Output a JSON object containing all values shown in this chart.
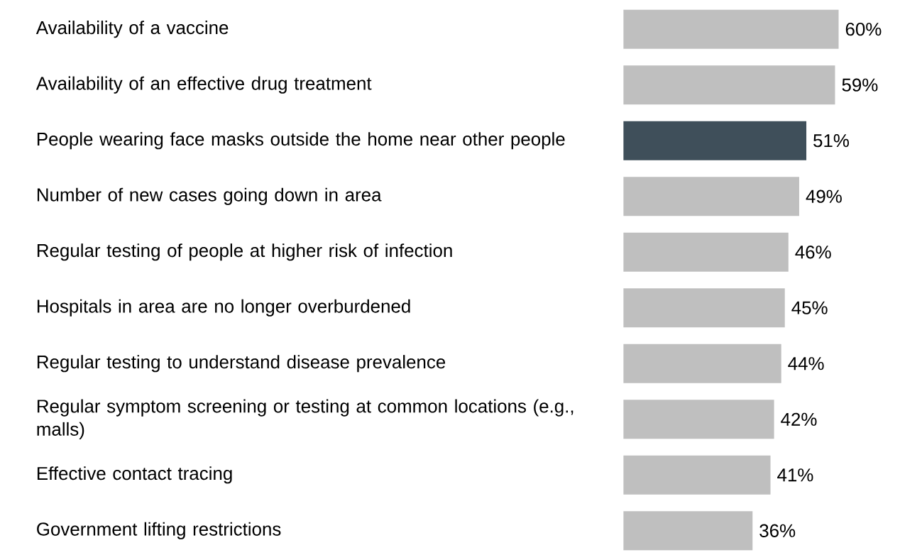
{
  "chart_data": {
    "type": "bar",
    "orientation": "horizontal",
    "categories": [
      "Availability of a vaccine",
      "Availability of an effective drug treatment",
      "People wearing face masks outside the home near other people",
      "Number of new cases going down in area",
      "Regular testing of people at higher risk of infection",
      "Hospitals in area are no longer overburdened",
      "Regular testing to understand disease prevalence",
      "Regular symptom screening or testing at common locations (e.g., malls)",
      "Effective contact tracing",
      "Government lifting restrictions"
    ],
    "values": [
      60,
      59,
      51,
      49,
      46,
      45,
      44,
      42,
      41,
      36
    ],
    "colors": [
      "#bfbfbf",
      "#bfbfbf",
      "#3f4f5a",
      "#bfbfbf",
      "#bfbfbf",
      "#bfbfbf",
      "#bfbfbf",
      "#bfbfbf",
      "#bfbfbf",
      "#bfbfbf"
    ],
    "value_labels": [
      "60%",
      "59%",
      "51%",
      "49%",
      "46%",
      "45%",
      "44%",
      "42%",
      "41%",
      "36%"
    ]
  }
}
